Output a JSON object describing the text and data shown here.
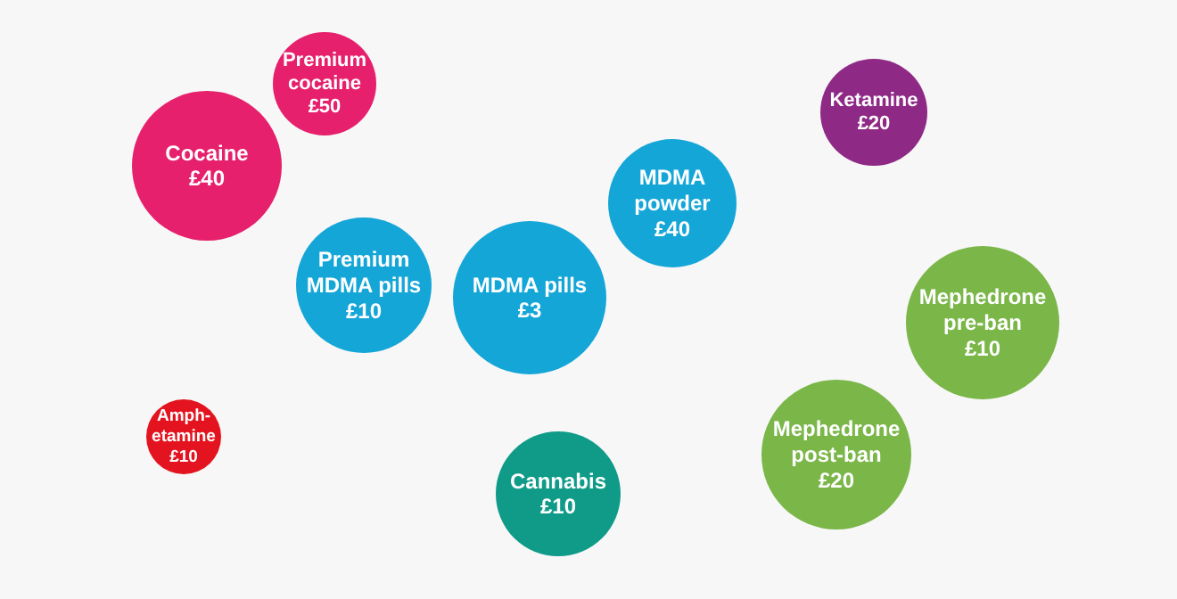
{
  "chart_data": {
    "type": "other",
    "categories": [
      "Premium\ncocaine",
      "Cocaine",
      "Premium\nMDMA pills",
      "MDMA pills",
      "MDMA\npowder",
      "Ketamine",
      "Mephedrone\npre-ban",
      "Mephedrone\npost-ban",
      "Amph-\netamine",
      "Cannabis"
    ],
    "values": [
      50,
      40,
      10,
      3,
      40,
      20,
      10,
      20,
      10,
      10
    ],
    "value_labels": [
      "£50",
      "£40",
      "£10",
      "£3",
      "£40",
      "£20",
      "£10",
      "£20",
      "£10",
      "£10"
    ],
    "colors": [
      "#e6206c",
      "#e6206c",
      "#15a6d8",
      "#15a6d8",
      "#15a6d8",
      "#8e2a86",
      "#7ab648",
      "#7ab648",
      "#e3141f",
      "#0f9b88"
    ]
  }
}
